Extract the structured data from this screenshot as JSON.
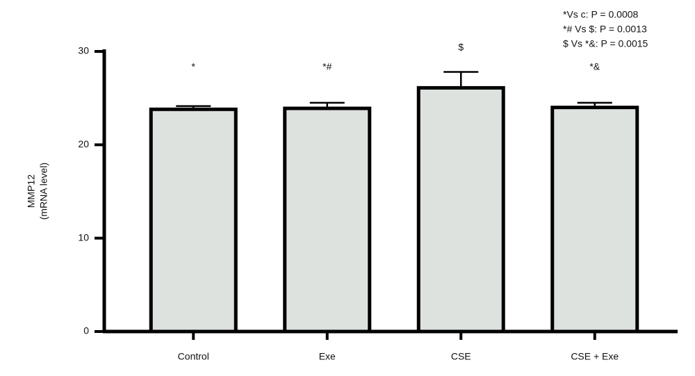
{
  "chart_data": {
    "type": "bar",
    "y_label": [
      "MMP12",
      "(mRNA level)"
    ],
    "categories": [
      "Control",
      "Exe",
      "CSE",
      "CSE + Exe"
    ],
    "values": [
      23.8,
      23.9,
      26.1,
      24.0
    ],
    "errors": [
      0.35,
      0.6,
      1.7,
      0.5
    ],
    "bar_annotations": [
      "*",
      "*#",
      "$",
      "*&"
    ],
    "notes": [
      "*Vs c: P = 0.0008",
      "*# Vs $: P = 0.0013",
      "$ Vs *&: P = 0.0015"
    ],
    "color": "#dde2df",
    "ylim": [
      0,
      30
    ],
    "yticks": [
      0,
      10,
      20,
      30
    ],
    "grid": false
  }
}
